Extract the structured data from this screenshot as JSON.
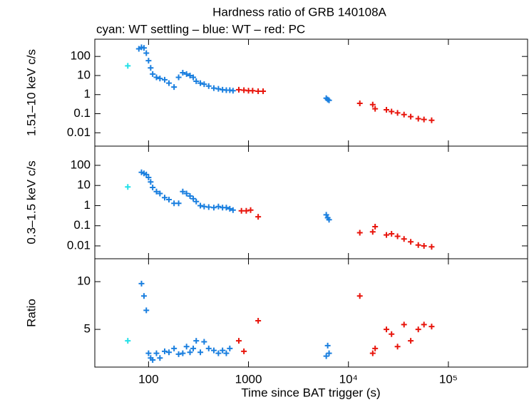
{
  "chart_data": {
    "type": "scatter",
    "title": "Hardness ratio of GRB 140108A",
    "subtitle": "cyan: WT settling – blue: WT – red: PC",
    "x_label": "Time since BAT trigger (s)",
    "xlog": true,
    "xlim": [
      29,
      620000
    ],
    "xticks": [
      100,
      1000,
      {
        "value": 10000,
        "label": "10⁴"
      },
      {
        "value": 100000,
        "label": "10⁵"
      }
    ],
    "panels": [
      {
        "y_label": "1.51–10 keV c/s",
        "ylog": true,
        "ylim": [
          0.002,
          800
        ],
        "yticks": [
          0.01,
          0.1,
          1,
          10,
          100
        ],
        "series": [
          {
            "color": "#22e0e8",
            "x": [
              62
            ],
            "values": [
              32
            ]
          },
          {
            "color": "#1a7fdf",
            "x": [
              80,
              85,
              90,
              95,
              100,
              105,
              110,
              120,
              130,
              145,
              160,
              180,
              200,
              220,
              240,
              260,
              280,
              300,
              330,
              360,
              400,
              450,
              500,
              550,
              600,
              650,
              700,
              6000,
              6200,
              6400
            ],
            "values": [
              250,
              300,
              280,
              150,
              60,
              25,
              12,
              8,
              7,
              6,
              4,
              2.5,
              8,
              14,
              12,
              10,
              8,
              5,
              4,
              3.5,
              2.8,
              2.2,
              2,
              1.8,
              1.7,
              1.7,
              1.6,
              0.65,
              0.55,
              0.5
            ]
          },
          {
            "color": "#e8150c",
            "x": [
              800,
              900,
              1000,
              1100,
              1250,
              1400,
              13000,
              17500,
              18500,
              24000,
              27000,
              31000,
              36000,
              42000,
              50000,
              57000,
              68000
            ],
            "values": [
              1.8,
              1.7,
              1.6,
              1.6,
              1.5,
              1.5,
              0.35,
              0.3,
              0.18,
              0.16,
              0.13,
              0.11,
              0.09,
              0.07,
              0.055,
              0.05,
              0.045
            ]
          }
        ]
      },
      {
        "y_label": "0.3–1.5 keV c/s",
        "ylog": true,
        "ylim": [
          0.0023,
          900
        ],
        "yticks": [
          0.01,
          0.1,
          1,
          10,
          100
        ],
        "series": [
          {
            "color": "#22e0e8",
            "x": [
              62
            ],
            "values": [
              8.5
            ]
          },
          {
            "color": "#1a7fdf",
            "x": [
              85,
              90,
              95,
              100,
              105,
              110,
              120,
              130,
              145,
              160,
              180,
              200,
              220,
              240,
              260,
              280,
              300,
              330,
              360,
              400,
              450,
              500,
              550,
              600,
              650,
              700,
              6000,
              6200,
              6400
            ],
            "values": [
              45,
              40,
              35,
              25,
              15,
              8,
              5,
              4,
              2.5,
              2,
              1.3,
              1.3,
              5,
              4,
              3,
              2.2,
              1.6,
              1,
              0.9,
              0.85,
              0.8,
              0.9,
              0.8,
              0.8,
              0.7,
              0.6,
              0.35,
              0.25,
              0.2
            ]
          },
          {
            "color": "#e8150c",
            "x": [
              850,
              950,
              1050,
              1250,
              13000,
              17500,
              18500,
              24000,
              27000,
              31000,
              36000,
              42000,
              50000,
              57000,
              68000
            ],
            "values": [
              0.55,
              0.55,
              0.6,
              0.28,
              0.045,
              0.05,
              0.09,
              0.035,
              0.04,
              0.03,
              0.022,
              0.016,
              0.011,
              0.01,
              0.009
            ]
          }
        ]
      },
      {
        "y_label": "Ratio",
        "ylog": false,
        "ylim": [
          1.05,
          12.4
        ],
        "yticks": [
          5,
          10
        ],
        "series": [
          {
            "color": "#22e0e8",
            "x": [
              62
            ],
            "values": [
              3.8
            ]
          },
          {
            "color": "#1a7fdf",
            "x": [
              85,
              90,
              95,
              100,
              105,
              110,
              120,
              130,
              145,
              160,
              180,
              200,
              220,
              240,
              260,
              280,
              300,
              330,
              360,
              400,
              450,
              500,
              550,
              600,
              650,
              6000,
              6200,
              6400
            ],
            "values": [
              9.8,
              8.5,
              7,
              2.5,
              2,
              1.8,
              2.5,
              2,
              2.7,
              2.6,
              3,
              2.4,
              2.5,
              3.2,
              2.6,
              3,
              3.8,
              2.6,
              3.7,
              3,
              2.8,
              2.5,
              2.8,
              2.5,
              3,
              2.2,
              3.3,
              2.5
            ]
          },
          {
            "color": "#e8150c",
            "x": [
              800,
              900,
              1250,
              13000,
              17500,
              18500,
              24000,
              27000,
              31000,
              36000,
              42000,
              50000,
              57000,
              68000
            ],
            "values": [
              3.8,
              2.7,
              5.9,
              8.5,
              2.5,
              3,
              5,
              4.5,
              3.2,
              5.5,
              3.8,
              5,
              5.5,
              5.3
            ]
          }
        ]
      }
    ]
  }
}
